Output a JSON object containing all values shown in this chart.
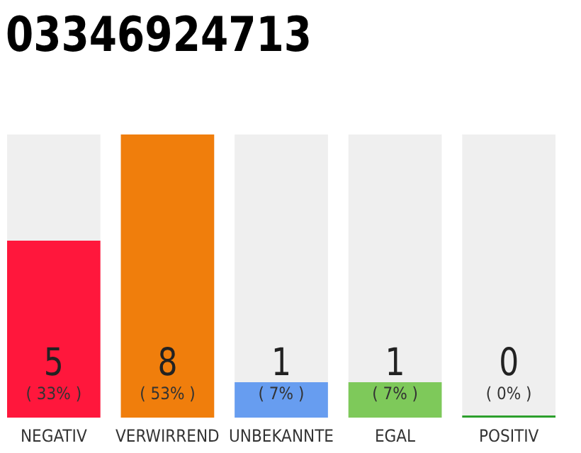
{
  "chart_data": {
    "type": "bar",
    "title": "03346924713",
    "categories": [
      "NEGATIV",
      "VERWIRREND",
      "UNBEKANNTE",
      "EGAL",
      "POSITIV"
    ],
    "values": [
      5,
      8,
      1,
      1,
      0
    ],
    "colors": [
      "#ff173c",
      "#f07e0c",
      "#679df0",
      "#7ec95a",
      "#2ca02c"
    ],
    "ylim": [
      0,
      8
    ],
    "data_labels": true,
    "tick_labels": "x",
    "annotations": [
      "( 33% )",
      "( 53% )",
      "( 7% )",
      "( 7% )",
      "( 0% )"
    ]
  }
}
